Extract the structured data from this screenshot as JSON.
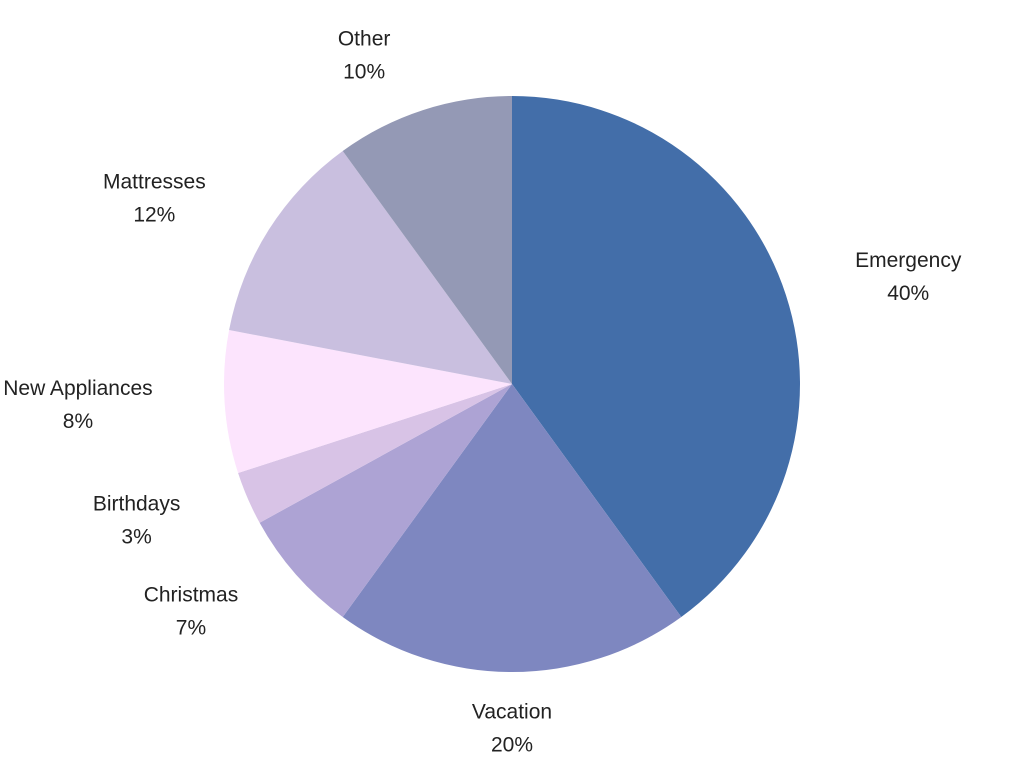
{
  "chart_data": {
    "type": "pie",
    "categories": [
      "Emergency",
      "Vacation",
      "Christmas",
      "Birthdays",
      "New Appliances",
      "Mattresses",
      "Other"
    ],
    "values": [
      40,
      20,
      7,
      3,
      8,
      12,
      10
    ],
    "value_labels": [
      "40%",
      "20%",
      "7%",
      "3%",
      "8%",
      "12%",
      "10%"
    ],
    "colors": [
      "#436ea9",
      "#7e87c0",
      "#ada3d4",
      "#d8c3e6",
      "#fce4fd",
      "#c9bfdf",
      "#9499b5"
    ]
  }
}
